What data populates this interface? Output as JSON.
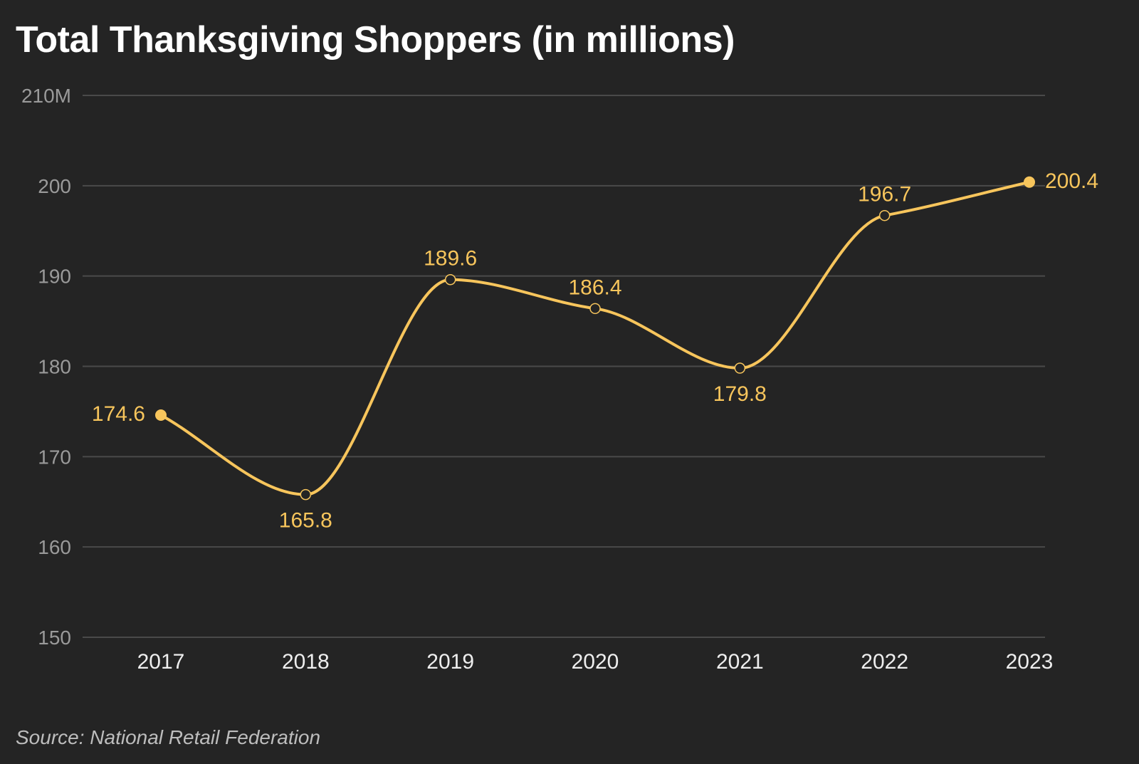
{
  "chart_data": {
    "type": "line",
    "title": "Total Thanksgiving Shoppers (in millions)",
    "source": "Source: National Retail Federation",
    "x": [
      "2017",
      "2018",
      "2019",
      "2020",
      "2021",
      "2022",
      "2023"
    ],
    "series": [
      {
        "values": [
          174.6,
          165.8,
          189.6,
          186.4,
          179.8,
          196.7,
          200.4
        ],
        "data_labels": [
          "174.6",
          "165.8",
          "189.6",
          "186.4",
          "179.8",
          "196.7",
          "200.4"
        ],
        "label_placement": [
          "left",
          "below",
          "above",
          "above",
          "below",
          "above",
          "right"
        ],
        "color": "#f7c55c",
        "line_style": "smooth",
        "endpoint_markers": "filled",
        "interior_markers": "hollow"
      }
    ],
    "y_ticks": [
      150,
      160,
      170,
      180,
      190,
      200,
      210
    ],
    "y_tick_labels": [
      "150",
      "160",
      "170",
      "180",
      "190",
      "200",
      "210M"
    ],
    "ylim": [
      150,
      210
    ],
    "grid": true,
    "colors": {
      "background": "#242424",
      "grid": "#4a4a4a",
      "line": "#f7c55c"
    }
  }
}
